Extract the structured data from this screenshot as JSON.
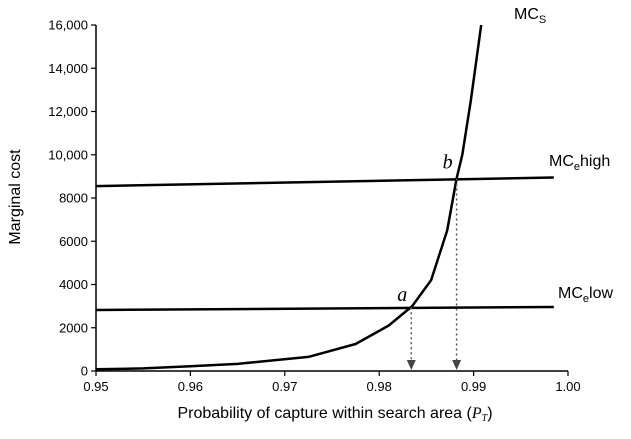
{
  "chart_data": {
    "type": "line",
    "title": "",
    "xlabel": "Probability of capture within search area (",
    "xlabel_symbol": "P",
    "xlabel_symbol_sub": "T",
    "xlabel_close": ")",
    "ylabel": "Marginal cost",
    "xlim": [
      0.95,
      1.0
    ],
    "ylim": [
      0,
      16000
    ],
    "x_ticks": [
      0.95,
      0.96,
      0.97,
      0.98,
      0.99,
      1.0
    ],
    "x_tick_labels": [
      "0.95",
      "0.96",
      "0.97",
      "0.98",
      "0.99",
      "1.00"
    ],
    "y_ticks": [
      0,
      2000,
      4000,
      6000,
      8000,
      10000,
      12000,
      14000,
      16000
    ],
    "y_tick_labels": [
      "0",
      "2000",
      "4000",
      "6000",
      "8000",
      "10,000",
      "12,000",
      "14,000",
      "16,000"
    ],
    "grid": false,
    "series": [
      {
        "name": "MC",
        "name_sub": "S",
        "x": [
          0.95,
          0.955,
          0.96,
          0.965,
          0.9725,
          0.9775,
          0.981,
          0.9835,
          0.9855,
          0.9872,
          0.9882,
          0.9888,
          0.9897,
          0.9908
        ],
        "y": [
          80,
          120,
          220,
          330,
          650,
          1250,
          2100,
          3000,
          4200,
          6500,
          8900,
          10000,
          12500,
          16000
        ]
      },
      {
        "name": "MC",
        "name_sub": "e",
        "name_suffix": "high",
        "x": [
          0.95,
          0.9985
        ],
        "y": [
          8550,
          8950
        ]
      },
      {
        "name": "MC",
        "name_sub": "e",
        "name_suffix": "low",
        "x": [
          0.95,
          0.9985
        ],
        "y": [
          2820,
          2960
        ]
      }
    ],
    "annotations": [
      {
        "label": "a",
        "x": 0.9834,
        "y": 2950
      },
      {
        "label": "b",
        "x": 0.9882,
        "y": 8900
      }
    ]
  }
}
